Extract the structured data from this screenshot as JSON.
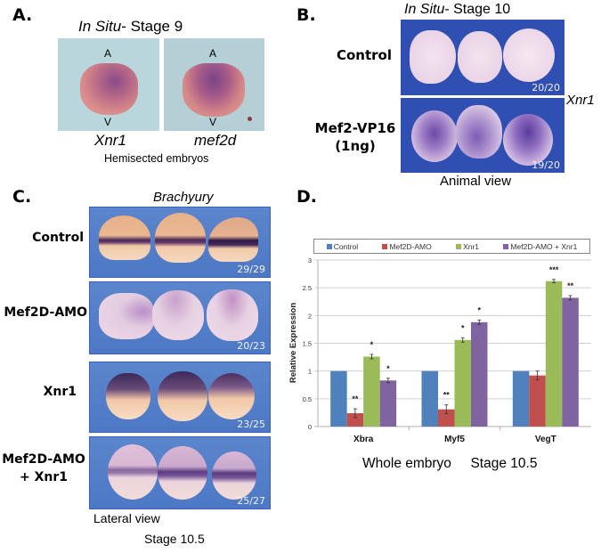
{
  "panel_a": {
    "letter": "A.",
    "title_italic": "In Situ",
    "title_rest": "- Stage 9",
    "animal_pole": "A",
    "vegetal_pole": "V",
    "images": [
      {
        "gene": "Xnr1"
      },
      {
        "gene": "mef2d"
      }
    ],
    "footer": "Hemisected embryos"
  },
  "panel_b": {
    "letter": "B.",
    "title_italic": "In Situ",
    "title_rest": "- Stage 10",
    "rows": [
      {
        "label": "Control",
        "label2": "",
        "score": "20/20"
      },
      {
        "label": "Mef2-VP16",
        "label2": "(1ng)",
        "score": "19/20"
      }
    ],
    "gene": "Xnr1",
    "footer": "Animal view"
  },
  "panel_c": {
    "letter": "C.",
    "title": "Brachyury",
    "rows": [
      {
        "label": "Control",
        "label2": "",
        "score": "29/29"
      },
      {
        "label": "Mef2D-AMO",
        "label2": "",
        "score": "20/23"
      },
      {
        "label": "Xnr1",
        "label2": "",
        "score": "23/25"
      },
      {
        "label": "Mef2D-AMO",
        "label2": "+ Xnr1",
        "score": "25/27"
      }
    ],
    "footer_view": "Lateral view",
    "footer_stage": "Stage 10.5"
  },
  "panel_d": {
    "letter": "D.",
    "footer": "Whole embryo     Stage 10.5"
  },
  "chart_data": {
    "type": "bar",
    "title": "",
    "xlabel": "",
    "ylabel": "Relative Expression",
    "ylim": [
      0,
      3
    ],
    "yticks": [
      0,
      0.5,
      1,
      1.5,
      2,
      2.5,
      3
    ],
    "ytick_labels": [
      "0",
      "0.5",
      "1",
      "1.5",
      "2",
      "2.5",
      "3"
    ],
    "grid": true,
    "legend_position": "top",
    "categories": [
      "Xbra",
      "Myf5",
      "VegT"
    ],
    "series": [
      {
        "name": "Control",
        "color": "#4f81bd",
        "values": [
          1.0,
          1.0,
          1.0
        ],
        "errors": [
          0,
          0,
          0
        ],
        "significance": [
          "",
          "",
          ""
        ]
      },
      {
        "name": "Mef2D-AMO",
        "color": "#c0504d",
        "values": [
          0.24,
          0.31,
          0.92
        ],
        "errors": [
          0.08,
          0.08,
          0.08
        ],
        "significance": [
          "**",
          "**",
          ""
        ]
      },
      {
        "name": "Xnr1",
        "color": "#9bbb59",
        "values": [
          1.26,
          1.56,
          2.62
        ],
        "errors": [
          0.04,
          0.04,
          0.03
        ],
        "significance": [
          "*",
          "*",
          "***"
        ]
      },
      {
        "name": "Mef2D-AMO + Xnr1",
        "color": "#8064a2",
        "values": [
          0.83,
          1.88,
          2.32
        ],
        "errors": [
          0.04,
          0.04,
          0.04
        ],
        "significance": [
          "*",
          "*",
          "**"
        ]
      }
    ]
  }
}
